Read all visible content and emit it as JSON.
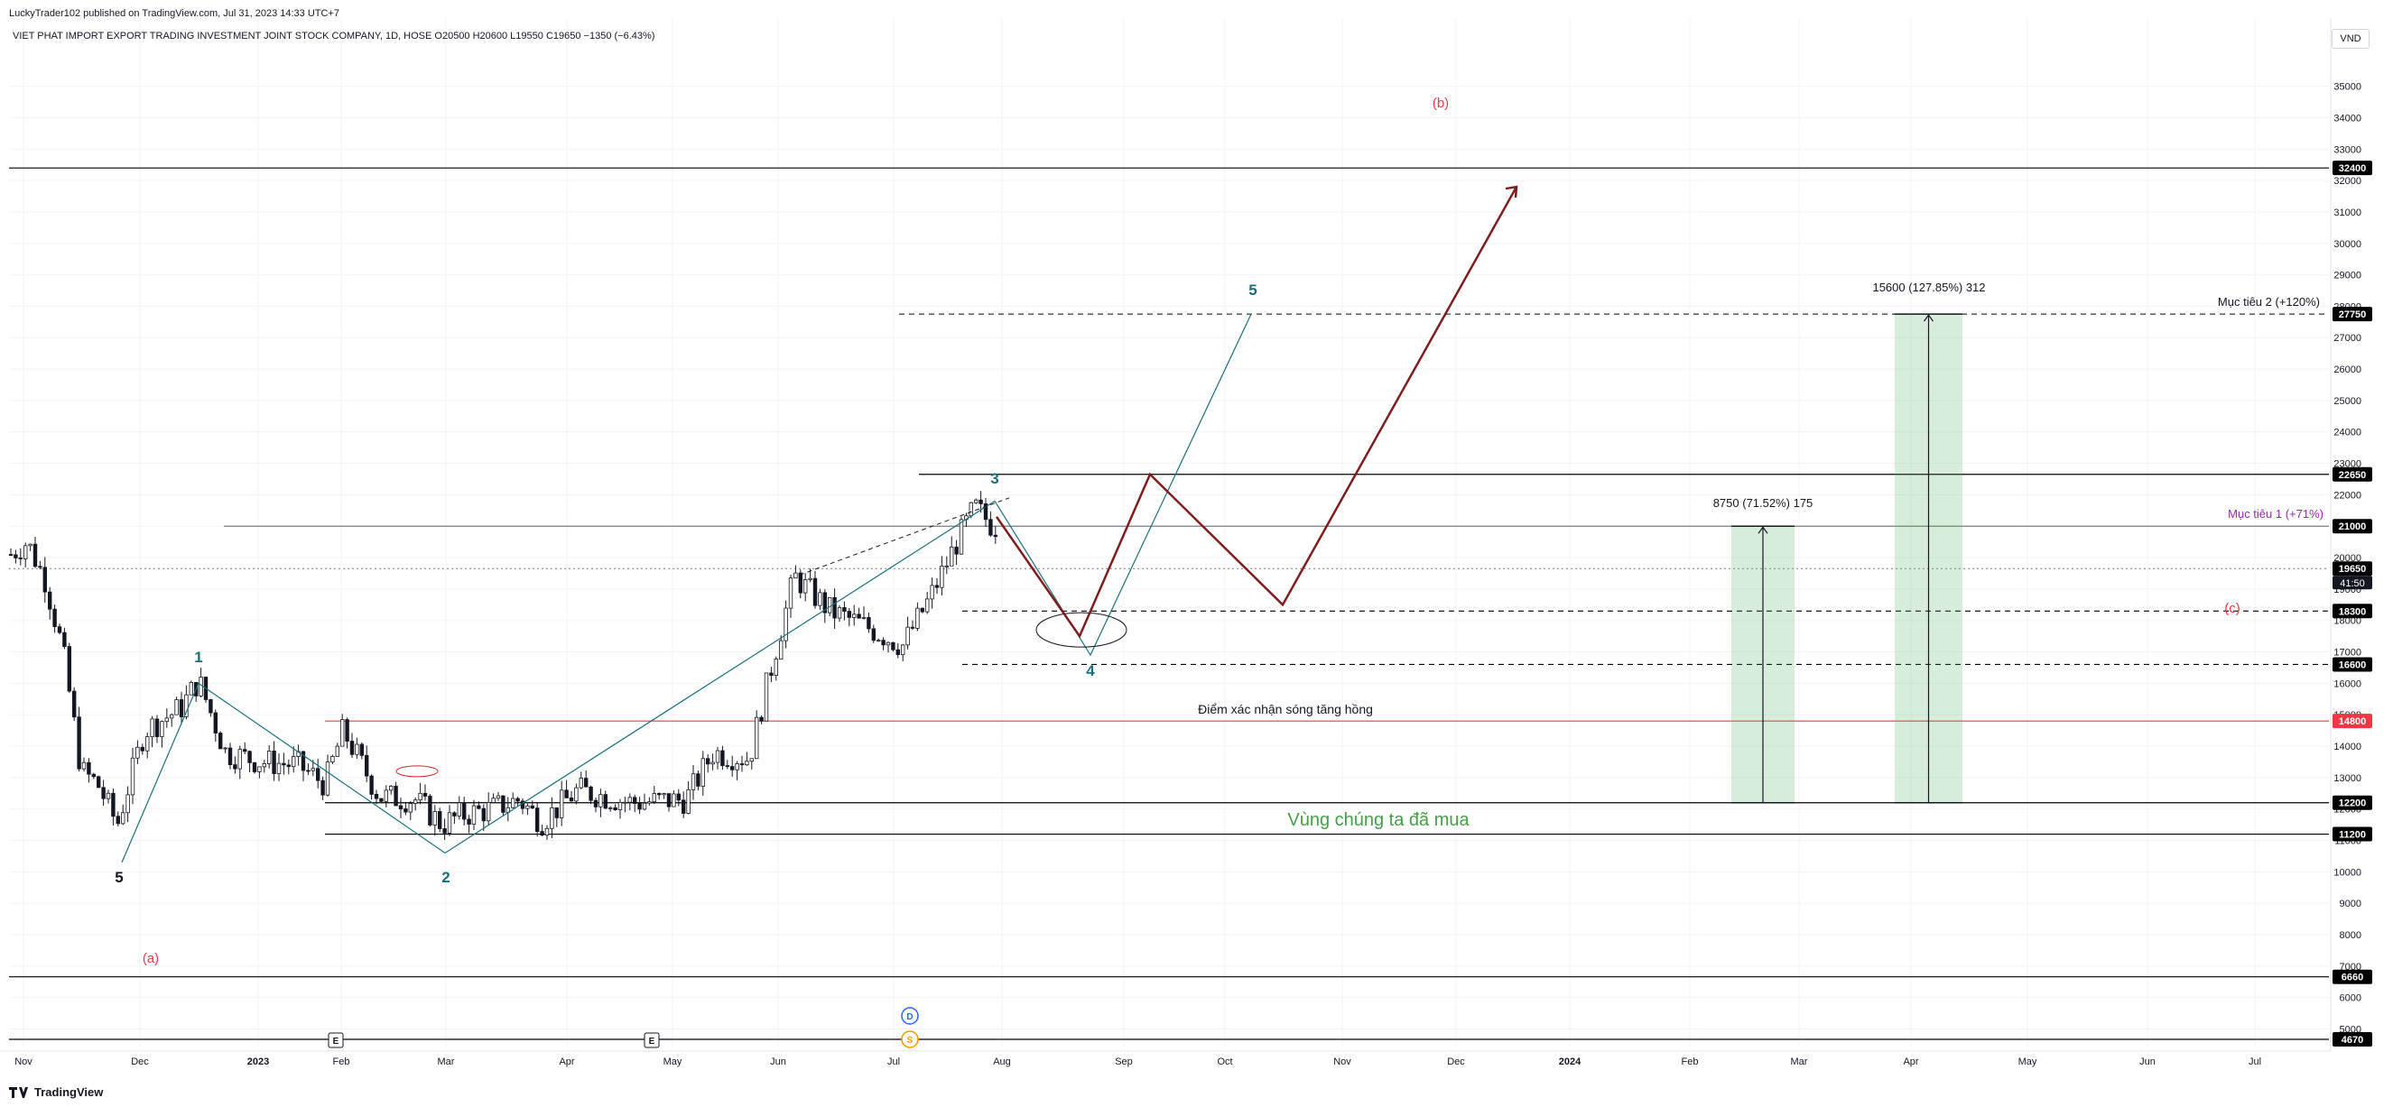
{
  "header": {
    "published": "LuckyTrader102 published on TradingView.com, Jul 31, 2023 14:33 UTC+7",
    "symbol_line": "VIET PHAT IMPORT EXPORT TRADING INVESTMENT JOINT STOCK COMPANY, 1D, HOSE  O20500  H20600  L19550  C19650  −1350 (−6.43%)"
  },
  "currency": "VND",
  "brand": "TradingView",
  "chart_data": {
    "type": "candlestick",
    "title": "VIET PHAT IMPORT EXPORT TRADING INVESTMENT JOINT STOCK COMPANY, 1D, HOSE",
    "ohlc": {
      "open": 20500,
      "high": 20600,
      "low": 19550,
      "close": 19650,
      "change": -1350,
      "change_pct": -6.43
    },
    "ylim": [
      4000,
      35500
    ],
    "y_ticks": [
      5000,
      6000,
      7000,
      8000,
      9000,
      10000,
      11000,
      12000,
      13000,
      14000,
      15000,
      16000,
      17000,
      18000,
      19000,
      20000,
      21000,
      22000,
      23000,
      24000,
      25000,
      26000,
      27000,
      28000,
      29000,
      30000,
      31000,
      32000,
      33000,
      34000,
      35000
    ],
    "x_ticks": [
      "Nov",
      "Dec",
      "2023",
      "Feb",
      "Mar",
      "Apr",
      "May",
      "Jun",
      "Jul",
      "Aug",
      "Sep",
      "Oct",
      "Nov",
      "Dec",
      "2024",
      "Feb",
      "Mar",
      "Apr",
      "May",
      "Jun",
      "Jul"
    ],
    "price_labels": [
      {
        "value": 32400,
        "label": "32400",
        "color": "#000000"
      },
      {
        "value": 27750,
        "label": "27750",
        "color": "#000000"
      },
      {
        "value": 22650,
        "label": "22650",
        "color": "#000000"
      },
      {
        "value": 21000,
        "label": "21000",
        "color": "#000000"
      },
      {
        "value": 19650,
        "label": "19650",
        "color": "#000000"
      },
      {
        "value": 18300,
        "label": "18300",
        "color": "#000000"
      },
      {
        "value": 16600,
        "label": "16600",
        "color": "#000000"
      },
      {
        "value": 14800,
        "label": "14800",
        "color": "#f23645"
      },
      {
        "value": 12200,
        "label": "12200",
        "color": "#000000"
      },
      {
        "value": 11200,
        "label": "11200",
        "color": "#000000"
      },
      {
        "value": 6660,
        "label": "6660",
        "color": "#000000"
      },
      {
        "value": 4670,
        "label": "4670",
        "color": "#000000"
      }
    ],
    "countdown": "41:50",
    "horizontal_lines": [
      {
        "value": 32400,
        "style": "solid",
        "color": "#000000"
      },
      {
        "value": 27750,
        "style": "dashed",
        "color": "#000000"
      },
      {
        "value": 22650,
        "style": "solid",
        "color": "#000000"
      },
      {
        "value": 21000,
        "style": "solid",
        "color": "#787b86"
      },
      {
        "value": 19650,
        "style": "dotted",
        "color": "#787b86"
      },
      {
        "value": 18300,
        "style": "dashed",
        "color": "#000000"
      },
      {
        "value": 16600,
        "style": "dashed",
        "color": "#000000"
      },
      {
        "value": 14800,
        "style": "solid",
        "color": "#f23645"
      },
      {
        "value": 12200,
        "style": "solid",
        "color": "#000000"
      },
      {
        "value": 11200,
        "style": "solid",
        "color": "#000000"
      },
      {
        "value": 6660,
        "style": "solid",
        "color": "#000000"
      },
      {
        "value": 4670,
        "style": "solid",
        "color": "#000000"
      }
    ],
    "wave_labels": [
      {
        "text": "1",
        "color": "#1a6e7a"
      },
      {
        "text": "2",
        "color": "#1a6e7a"
      },
      {
        "text": "3",
        "color": "#1a6e7a"
      },
      {
        "text": "4",
        "color": "#1a6e7a"
      },
      {
        "text": "5",
        "color": "#1a6e7a"
      },
      {
        "text": "5",
        "color": "#131722"
      },
      {
        "text": "(a)",
        "color": "#f23645"
      },
      {
        "text": "(b)",
        "color": "#f23645"
      },
      {
        "text": "(c)",
        "color": "#f23645"
      }
    ],
    "annotations": {
      "target_1": "Mục tiêu 1 (+71%)",
      "target_2": "Mục tiêu 2 (+120%)",
      "confirm_point": "Điểm xác nhận sóng tăng hồng",
      "buy_zone": "Vùng chúng ta đã mua",
      "measure_1": "8750 (71.52%) 175",
      "measure_2": "15600 (127.85%) 312"
    },
    "measures": [
      {
        "from": 12200,
        "to": 21000,
        "change": 8750,
        "pct": 71.52,
        "bars": 175
      },
      {
        "from": 12200,
        "to": 27750,
        "change": 15600,
        "pct": 127.85,
        "bars": 312
      }
    ],
    "event_markers": [
      {
        "text": "E",
        "color": "#131722"
      },
      {
        "text": "E",
        "color": "#131722"
      },
      {
        "text": "D",
        "color": "#2962ff"
      },
      {
        "text": "S",
        "color": "#ff9800"
      }
    ],
    "projection_path": [
      {
        "date": "Jul 27",
        "value": 21300
      },
      {
        "date": "Aug 19",
        "value": 17500
      },
      {
        "date": "Sep 7",
        "value": 22650
      },
      {
        "date": "Oct 18",
        "value": 18500
      },
      {
        "date": "Dec 22",
        "value": 31800
      }
    ],
    "candles": []
  }
}
